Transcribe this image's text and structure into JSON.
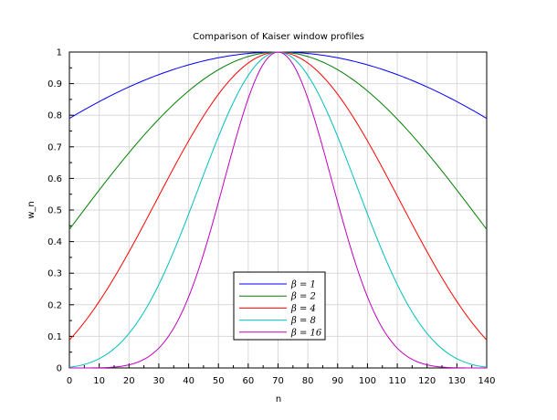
{
  "chart_data": {
    "type": "line",
    "title": "Comparison of Kaiser window profiles",
    "xlabel": "n",
    "ylabel": "w_n",
    "xlim": [
      0,
      140
    ],
    "ylim": [
      0,
      1
    ],
    "xticks": [
      0,
      10,
      20,
      30,
      40,
      50,
      60,
      70,
      80,
      90,
      100,
      110,
      120,
      130,
      140
    ],
    "yticks": [
      0,
      0.1,
      0.2,
      0.3,
      0.4,
      0.5,
      0.6,
      0.7,
      0.8,
      0.9,
      1
    ],
    "grid": true,
    "legend_position": "bottom-center",
    "x": [
      0,
      10,
      20,
      30,
      40,
      50,
      60,
      70,
      80,
      90,
      100,
      110,
      120,
      130,
      140
    ],
    "series": [
      {
        "name": "β = 1",
        "legend_label": "β = 1",
        "color": "#0000ff",
        "beta": 1,
        "values": [
          0.79,
          0.84,
          0.89,
          0.93,
          0.96,
          0.98,
          0.995,
          1.0,
          0.995,
          0.98,
          0.96,
          0.93,
          0.89,
          0.84,
          0.79
        ]
      },
      {
        "name": "β = 2",
        "legend_label": "β = 2",
        "color": "#008000",
        "beta": 2,
        "values": [
          0.44,
          0.55,
          0.66,
          0.77,
          0.87,
          0.94,
          0.985,
          1.0,
          0.985,
          0.94,
          0.87,
          0.77,
          0.66,
          0.55,
          0.44
        ]
      },
      {
        "name": "β = 4",
        "legend_label": "β = 4",
        "color": "#ff0000",
        "beta": 4,
        "values": [
          0.09,
          0.18,
          0.31,
          0.48,
          0.66,
          0.83,
          0.95,
          1.0,
          0.95,
          0.83,
          0.66,
          0.48,
          0.31,
          0.18,
          0.09
        ]
      },
      {
        "name": "β = 8",
        "legend_label": "β = 8",
        "color": "#00bfbf",
        "beta": 8,
        "values": [
          0.0,
          0.02,
          0.08,
          0.22,
          0.45,
          0.71,
          0.92,
          1.0,
          0.92,
          0.71,
          0.45,
          0.22,
          0.08,
          0.02,
          0.0
        ]
      },
      {
        "name": "β = 16",
        "legend_label": "β = 16",
        "color": "#bf00bf",
        "beta": 16,
        "values": [
          0.0,
          0.0,
          0.01,
          0.05,
          0.2,
          0.5,
          0.85,
          1.0,
          0.85,
          0.5,
          0.2,
          0.05,
          0.01,
          0.0,
          0.0
        ]
      }
    ]
  }
}
